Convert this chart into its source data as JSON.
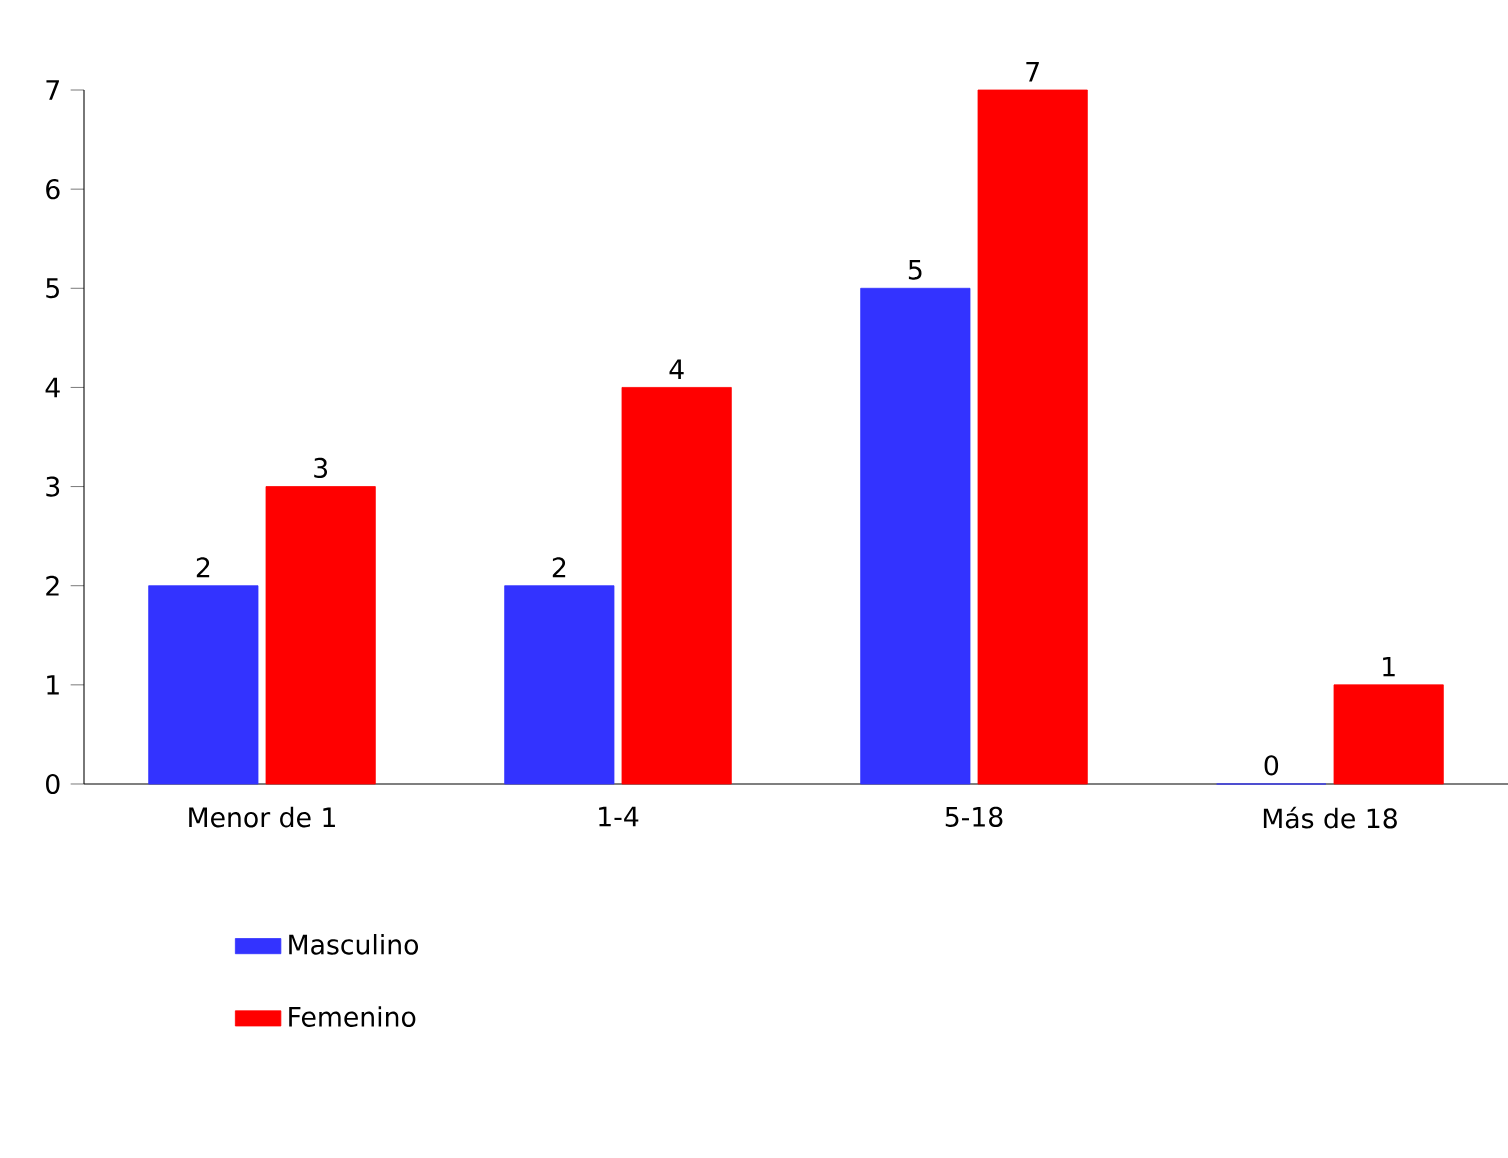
{
  "chart_data": {
    "type": "bar",
    "categories": [
      "Menor de 1",
      "1-4",
      "5-18",
      "Más de 18"
    ],
    "series": [
      {
        "name": "Masculino",
        "color": "#3333ff",
        "values": [
          2,
          2,
          5,
          0
        ]
      },
      {
        "name": "Femenino",
        "color": "#ff0000",
        "values": [
          3,
          4,
          7,
          1
        ]
      }
    ],
    "ylim": [
      0,
      7
    ],
    "yticks": [
      0,
      1,
      2,
      3,
      4,
      5,
      6,
      7
    ],
    "data_labels": true,
    "legend": "bottom",
    "grid": false
  }
}
